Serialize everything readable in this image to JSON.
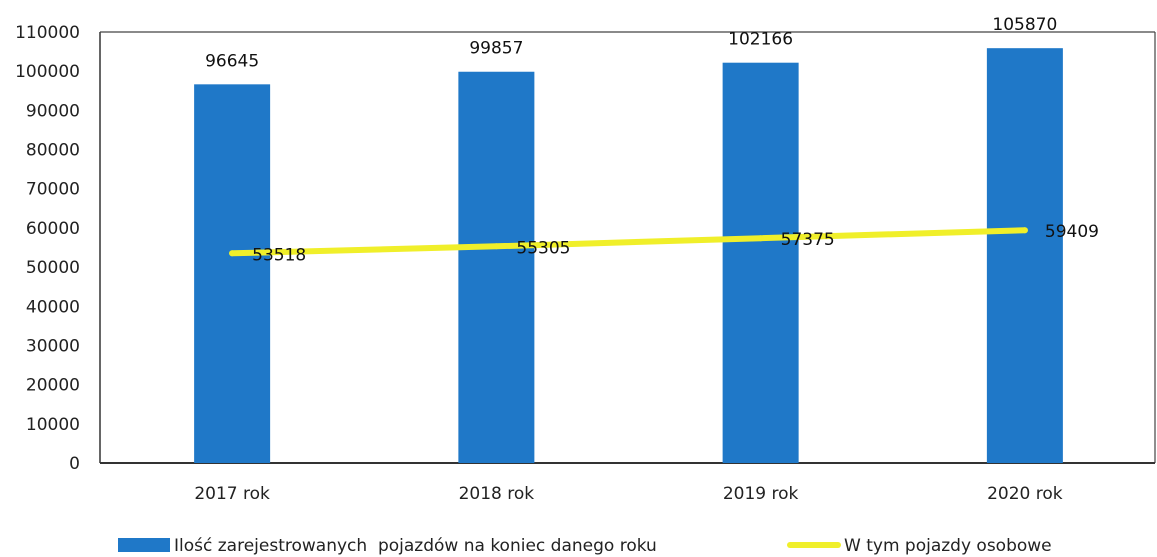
{
  "chart_data": {
    "type": "bar",
    "title": "",
    "xlabel": "",
    "ylabel": "",
    "categories": [
      "2017 rok",
      "2018 rok",
      "2019 rok",
      "2020 rok"
    ],
    "ylim": [
      0,
      110000
    ],
    "yticks": [
      0,
      10000,
      20000,
      30000,
      40000,
      50000,
      60000,
      70000,
      80000,
      90000,
      100000,
      110000
    ],
    "grid": false,
    "legend_position": "bottom",
    "series": [
      {
        "name": "Ilość zarejestrowanych  pojazdów na koniec danego roku",
        "kind": "bar",
        "color": "#1f78c8",
        "values": [
          96645,
          99857,
          102166,
          105870
        ],
        "labels": [
          "96645",
          "99857",
          "102166",
          "105870"
        ]
      },
      {
        "name": "W tym pojazdy osobowe",
        "kind": "line",
        "color": "#f0ef2a",
        "values": [
          53518,
          55305,
          57375,
          59409
        ],
        "labels": [
          "53518",
          "55305",
          "57375",
          "59409"
        ]
      }
    ]
  }
}
